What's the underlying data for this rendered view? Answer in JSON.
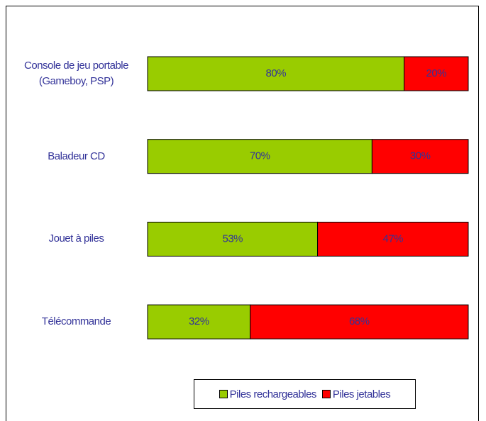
{
  "chart_data": {
    "type": "bar",
    "orientation": "horizontal",
    "stacked": true,
    "categories": [
      "Console de jeu portable (Gameboy, PSP)",
      "Baladeur CD",
      "Jouet à piles",
      "Télécommande"
    ],
    "series": [
      {
        "name": "Piles rechargeables",
        "color": "#99cc00",
        "values": [
          80,
          70,
          53,
          32
        ],
        "value_labels": [
          "80%",
          "70%",
          "53%",
          "32%"
        ]
      },
      {
        "name": "Piles jetables",
        "color": "#ff0000",
        "values": [
          20,
          30,
          47,
          68
        ],
        "value_labels": [
          "20%",
          "30%",
          "47%",
          "68%"
        ]
      }
    ],
    "legend": "bottom"
  }
}
